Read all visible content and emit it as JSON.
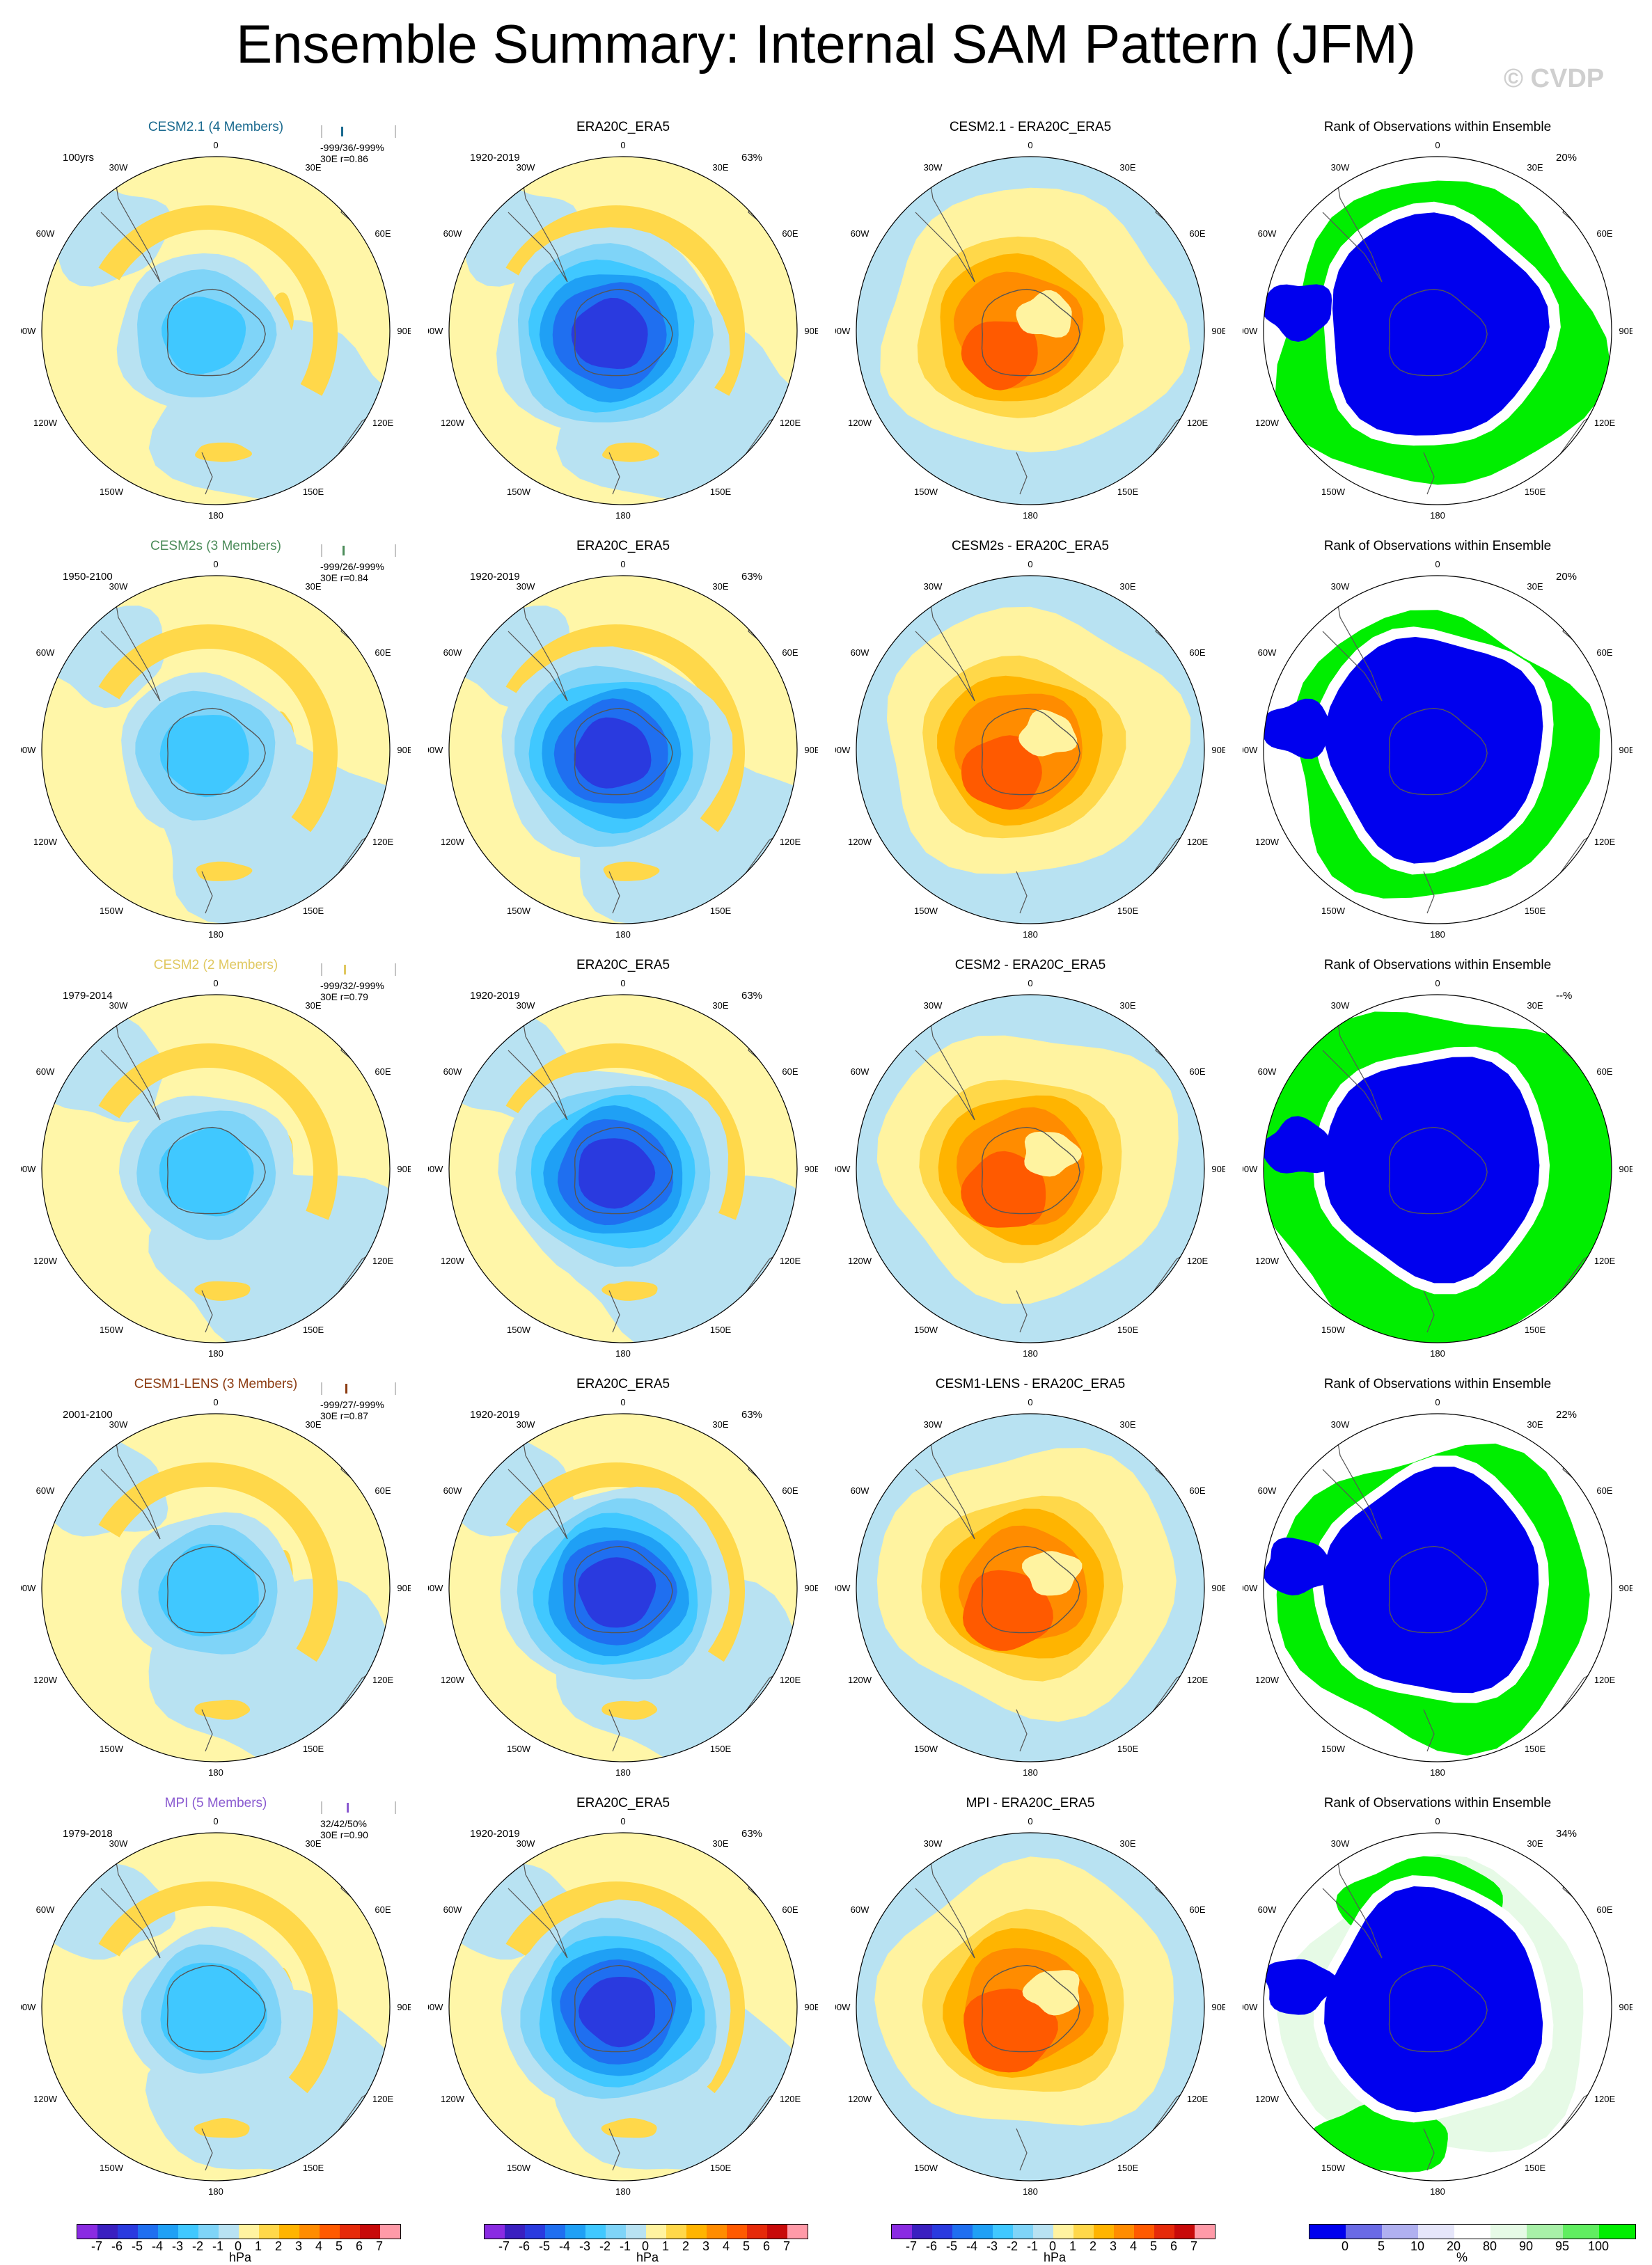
{
  "title": "Ensemble Summary: Internal SAM Pattern (JFM)",
  "watermark": "© CVDP",
  "axis_labels": {
    "lon_top": "0",
    "lon_bottom": "180",
    "lon_30w": "30W",
    "lon_30e": "30E",
    "lon_60w": "60W",
    "lon_60e": "60E",
    "lon_90w": "90W",
    "lon_90e": "90E",
    "lon_120w": "120W",
    "lon_120e": "120E",
    "lon_150w": "150W",
    "lon_150e": "150E"
  },
  "rows": [
    {
      "model": "CESM2.1 (4 Members)",
      "model_color": "#1a6a8f",
      "period": "100yrs",
      "stats_line1": "-999/36/-999%",
      "stats_line2": "30E r=0.86",
      "obs_title": "ERA20C_ERA5",
      "obs_period": "1920-2019",
      "obs_pct": "63%",
      "diff_title": "CESM2.1 - ERA20C_ERA5",
      "rank_title": "Rank of Observations within Ensemble",
      "rank_pct": "20%"
    },
    {
      "model": "CESM2s (3 Members)",
      "model_color": "#4c8c5a",
      "period": "1950-2100",
      "stats_line1": "-999/26/-999%",
      "stats_line2": "30E r=0.84",
      "obs_title": "ERA20C_ERA5",
      "obs_period": "1920-2019",
      "obs_pct": "63%",
      "diff_title": "CESM2s - ERA20C_ERA5",
      "rank_title": "Rank of Observations within Ensemble",
      "rank_pct": "20%"
    },
    {
      "model": "CESM2 (2 Members)",
      "model_color": "#e0c860",
      "period": "1979-2014",
      "stats_line1": "-999/32/-999%",
      "stats_line2": "30E r=0.79",
      "obs_title": "ERA20C_ERA5",
      "obs_period": "1920-2019",
      "obs_pct": "63%",
      "diff_title": "CESM2 - ERA20C_ERA5",
      "rank_title": "Rank of Observations within Ensemble",
      "rank_pct": "--%"
    },
    {
      "model": "CESM1-LENS (3 Members)",
      "model_color": "#8b3a10",
      "period": "2001-2100",
      "stats_line1": "-999/27/-999%",
      "stats_line2": "30E r=0.87",
      "obs_title": "ERA20C_ERA5",
      "obs_period": "1920-2019",
      "obs_pct": "63%",
      "diff_title": "CESM1-LENS - ERA20C_ERA5",
      "rank_title": "Rank of Observations within Ensemble",
      "rank_pct": "22%"
    },
    {
      "model": "MPI (5 Members)",
      "model_color": "#8a5ad0",
      "period": "1979-2018",
      "stats_line1": "32/42/50%",
      "stats_line2": "30E r=0.90",
      "obs_title": "ERA20C_ERA5",
      "obs_period": "1920-2019",
      "obs_pct": "63%",
      "diff_title": "MPI - ERA20C_ERA5",
      "rank_title": "Rank of Observations within Ensemble",
      "rank_pct": "34%"
    }
  ],
  "colorbar_hpa": {
    "ticks": [
      "-7",
      "-6",
      "-5",
      "-4",
      "-3",
      "-2",
      "-1",
      "0",
      "1",
      "2",
      "3",
      "4",
      "5",
      "6",
      "7"
    ],
    "unit": "hPa",
    "colors": [
      "#8a2be2",
      "#3a1fc0",
      "#2a3adf",
      "#1f6ff0",
      "#1fa0f5",
      "#40c8ff",
      "#7fd4f8",
      "#b8e2f2",
      "#fff3a0",
      "#ffd84a",
      "#ffb400",
      "#ff8c00",
      "#ff5a00",
      "#e62a0a",
      "#c80a0a",
      "#ff9aa8"
    ]
  },
  "colorbar_rank": {
    "ticks": [
      "0",
      "5",
      "10",
      "20",
      "80",
      "90",
      "95",
      "100"
    ],
    "unit": "%",
    "colors": [
      "#0000ee",
      "#6a6ae6",
      "#b0b0f0",
      "#e6e6fa",
      "#ffffff",
      "#e6fae6",
      "#a8f0a8",
      "#60ee60",
      "#00ee00"
    ]
  }
}
